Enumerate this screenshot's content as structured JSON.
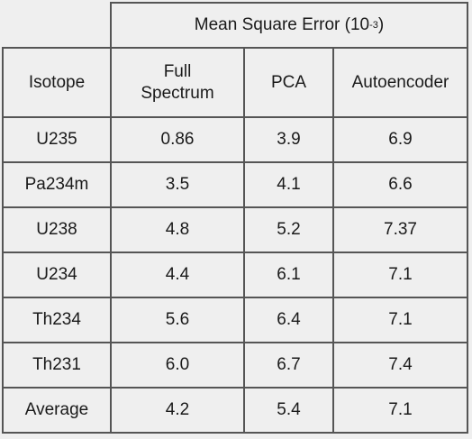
{
  "chart_data": {
    "type": "table",
    "header_group": {
      "label": "Mean Square Error (10",
      "exponent": "-3",
      "suffix": ")"
    },
    "columns": [
      "Isotope",
      "Full\nSpectrum",
      "PCA",
      "Autoencoder"
    ],
    "rows": [
      [
        "U235",
        "0.86",
        "3.9",
        "6.9"
      ],
      [
        "Pa234m",
        "3.5",
        "4.1",
        "6.6"
      ],
      [
        "U238",
        "4.8",
        "5.2",
        "7.37"
      ],
      [
        "U234",
        "4.4",
        "6.1",
        "7.1"
      ],
      [
        "Th234",
        "5.6",
        "6.4",
        "7.1"
      ],
      [
        "Th231",
        "6.0",
        "6.7",
        "7.4"
      ],
      [
        "Average",
        "4.2",
        "5.4",
        "7.1"
      ]
    ]
  },
  "colors": {
    "background": "#efefef",
    "grid": "#555555",
    "text": "#1a1a1a"
  }
}
